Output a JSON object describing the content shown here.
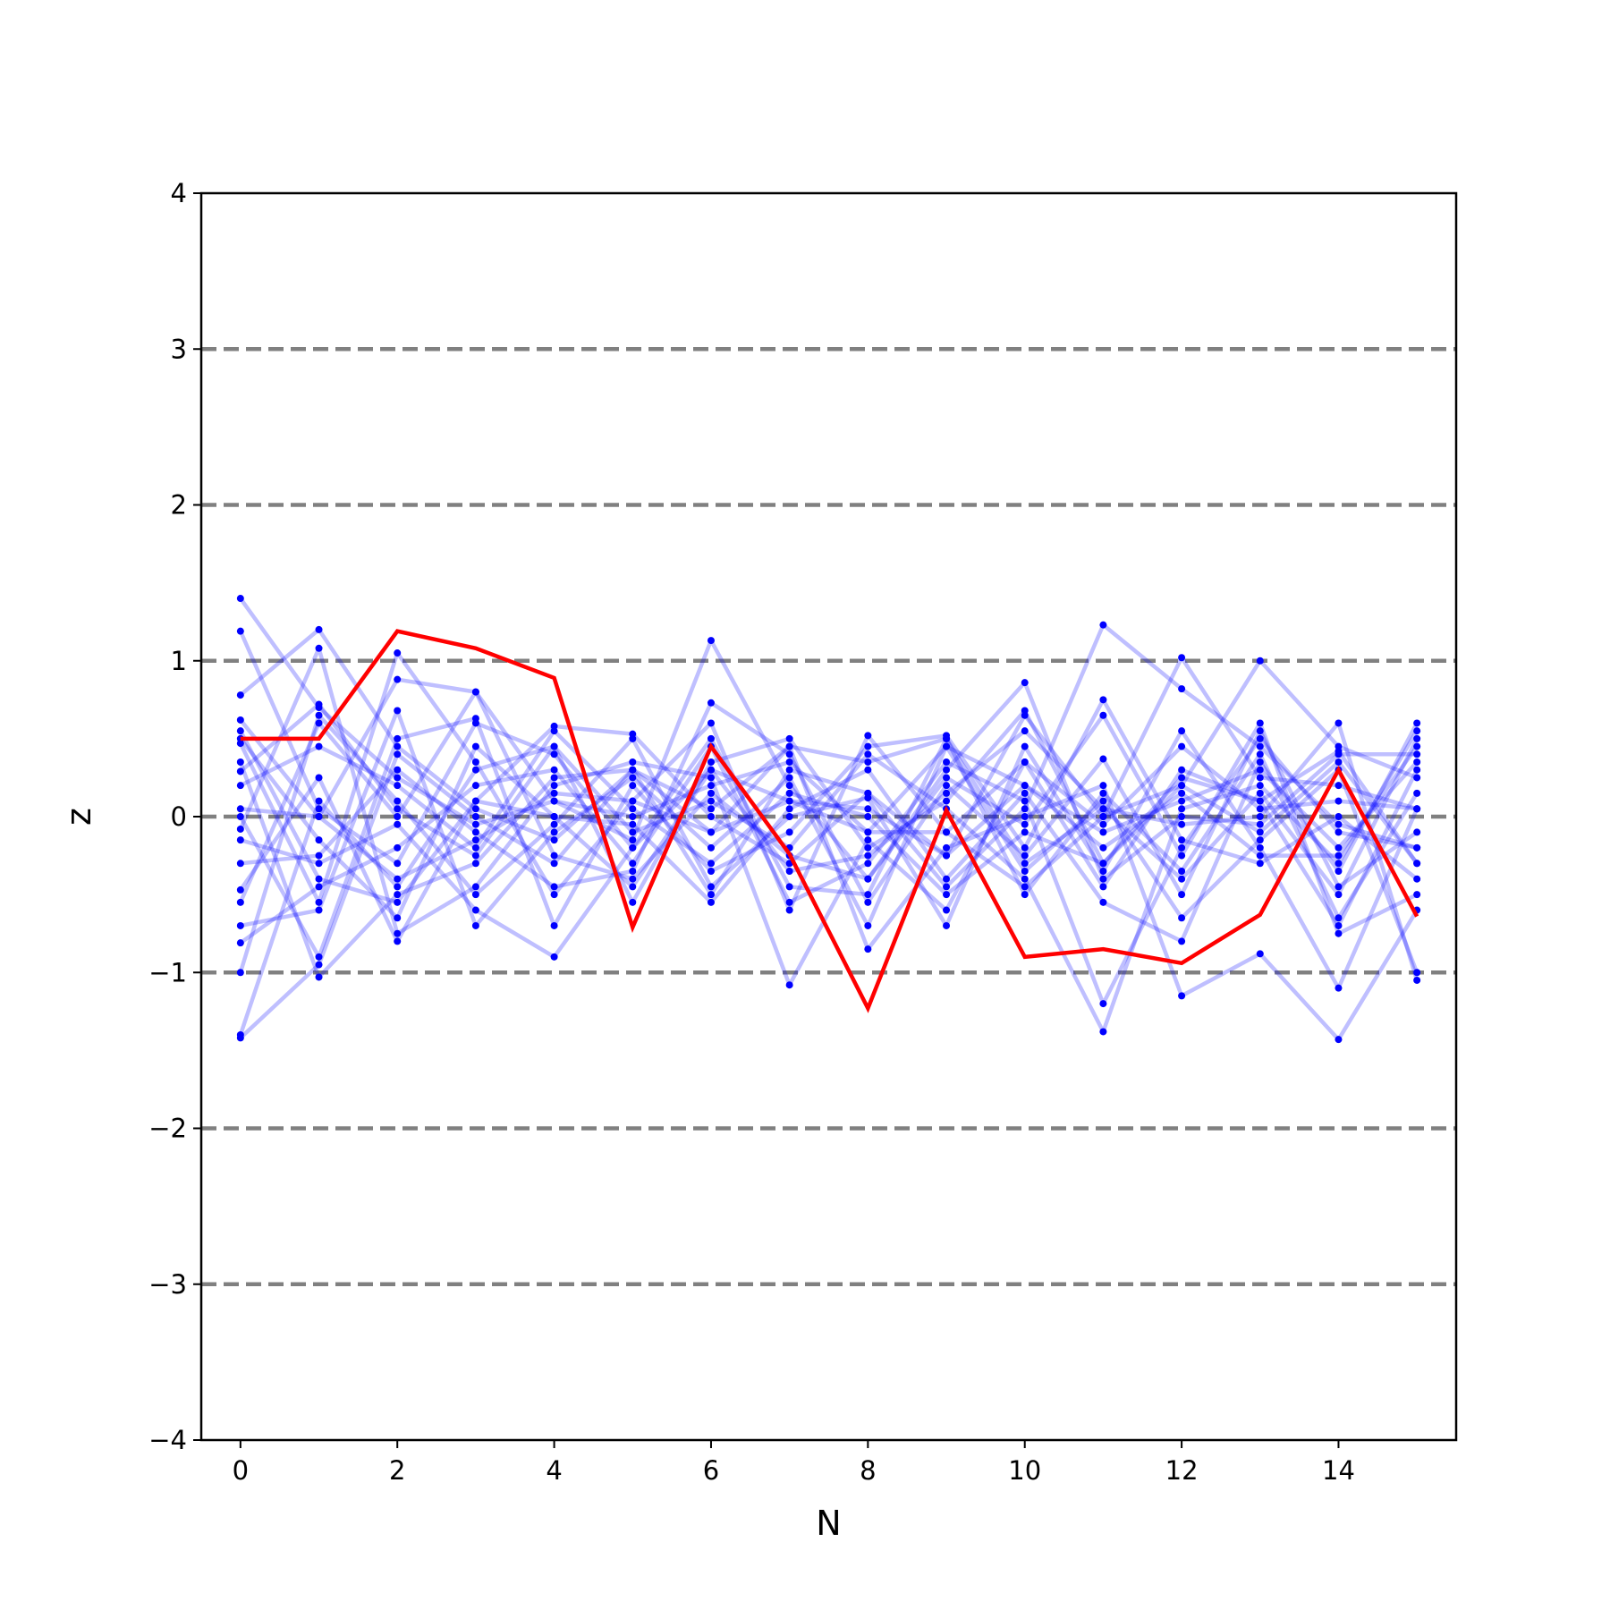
{
  "chart_data": {
    "type": "line",
    "xlabel": "N",
    "ylabel": "z",
    "xlim": [
      -0.5,
      15.5
    ],
    "ylim": [
      -4,
      4
    ],
    "x": [
      0,
      1,
      2,
      3,
      4,
      5,
      6,
      7,
      8,
      9,
      10,
      11,
      12,
      13,
      14,
      15
    ],
    "xticks": [
      0,
      2,
      4,
      6,
      8,
      10,
      12,
      14
    ],
    "xtick_labels": [
      "0",
      "2",
      "4",
      "6",
      "8",
      "10",
      "12",
      "14"
    ],
    "yticks": [
      -4,
      -3,
      -2,
      -1,
      0,
      1,
      2,
      3,
      4
    ],
    "ytick_labels": [
      "−4",
      "−3",
      "−2",
      "−1",
      "0",
      "1",
      "2",
      "3",
      "4"
    ],
    "reference_lines": [
      -3,
      -2,
      -1,
      0,
      1,
      2,
      3
    ],
    "grid": false,
    "legend": "none",
    "colors": {
      "background_series": "#0000ff",
      "highlight_series": "#ff0000",
      "reference_lines": "#808080"
    },
    "highlight_series": {
      "values": [
        0.5,
        0.5,
        1.19,
        1.08,
        0.89,
        -0.71,
        0.45,
        -0.24,
        -1.23,
        0.04,
        -0.9,
        -0.85,
        -0.94,
        -0.63,
        0.3,
        -0.64
      ]
    },
    "background_series": [
      {
        "values": [
          1.4,
          0.7,
          0.25,
          -0.05,
          0.1,
          0.0,
          0.2,
          0.35,
          -0.1,
          0.45,
          0.2,
          -0.1,
          0.1,
          0.3,
          -0.2,
          0.35
        ]
      },
      {
        "values": [
          1.19,
          0.05,
          -0.3,
          0.6,
          0.4,
          -0.2,
          0.3,
          0.1,
          0.05,
          -0.25,
          0.65,
          0.0,
          0.2,
          -0.1,
          0.35,
          -0.3
        ]
      },
      {
        "values": [
          0.78,
          1.2,
          0.45,
          0.05,
          -0.15,
          0.3,
          -0.1,
          0.45,
          0.35,
          0.5,
          -0.3,
          0.05,
          -0.4,
          0.15,
          -0.5,
          0.5
        ]
      },
      {
        "values": [
          0.62,
          0.0,
          0.88,
          0.8,
          0.1,
          -0.15,
          1.13,
          0.2,
          -0.4,
          0.3,
          0.86,
          -0.4,
          0.0,
          -0.05,
          0.4,
          0.4
        ]
      },
      {
        "values": [
          0.55,
          -0.4,
          -0.55,
          0.1,
          0.58,
          0.53,
          0.0,
          -0.3,
          0.15,
          -0.45,
          0.05,
          1.23,
          0.82,
          0.45,
          -0.05,
          -0.2
        ]
      },
      {
        "values": [
          0.47,
          -0.55,
          1.05,
          0.35,
          -0.5,
          0.1,
          0.6,
          -0.6,
          0.52,
          -0.1,
          -0.45,
          0.0,
          1.02,
          0.25,
          0.2,
          0.05
        ]
      },
      {
        "values": [
          0.29,
          0.72,
          0.05,
          -0.25,
          0.45,
          -0.55,
          0.35,
          0.5,
          -0.2,
          0.1,
          0.68,
          -0.3,
          0.2,
          1.0,
          0.45,
          0.25
        ]
      },
      {
        "values": [
          0.0,
          -0.9,
          0.5,
          0.63,
          -0.7,
          0.2,
          -0.35,
          -0.1,
          0.45,
          0.52,
          -0.2,
          0.75,
          -0.15,
          -0.3,
          0.0,
          -0.4
        ]
      },
      {
        "values": [
          -0.08,
          1.08,
          -0.75,
          -0.45,
          0.2,
          0.35,
          0.25,
          -1.08,
          -0.15,
          -0.6,
          0.35,
          -0.45,
          0.3,
          0.1,
          -0.7,
          0.3
        ]
      },
      {
        "values": [
          -0.3,
          -0.25,
          0.3,
          -0.1,
          -0.45,
          -0.35,
          0.73,
          0.4,
          -0.55,
          0.2,
          -0.25,
          0.37,
          -0.5,
          0.55,
          -0.45,
          -0.1
        ]
      },
      {
        "values": [
          -0.47,
          0.25,
          -0.8,
          0.1,
          0.0,
          -0.05,
          -0.55,
          0.05,
          0.3,
          -0.4,
          0.15,
          -0.55,
          -0.8,
          0.35,
          -0.35,
          0.6
        ]
      },
      {
        "values": [
          -0.7,
          -0.6,
          0.68,
          -0.7,
          -0.1,
          0.25,
          -0.2,
          0.25,
          -0.7,
          0.45,
          -0.35,
          0.1,
          -0.65,
          -0.15,
          0.3,
          -1.0
        ]
      },
      {
        "values": [
          -0.81,
          -0.45,
          -0.2,
          0.2,
          0.3,
          -0.3,
          0.45,
          -0.55,
          -0.3,
          0.35,
          0.1,
          -1.2,
          -0.2,
          0.5,
          -0.1,
          -0.2
        ]
      },
      {
        "values": [
          -1.0,
          0.65,
          0.1,
          -0.5,
          -0.05,
          0.5,
          -0.45,
          0.0,
          0.12,
          -0.7,
          0.45,
          -0.35,
          0.55,
          -0.2,
          -1.1,
          0.05
        ]
      },
      {
        "values": [
          -1.4,
          0.1,
          -0.45,
          0.3,
          0.45,
          -0.1,
          0.1,
          -0.2,
          0.4,
          0.05,
          -0.4,
          -1.38,
          0.05,
          0.2,
          -0.3,
          0.55
        ]
      },
      {
        "values": [
          -1.42,
          -0.95,
          0.4,
          0.0,
          -0.3,
          0.3,
          0.05,
          0.45,
          -0.85,
          -0.2,
          0.0,
          0.2,
          -1.15,
          -0.88,
          -1.43,
          -0.6
        ]
      },
      {
        "values": [
          0.5,
          -0.15,
          -0.65,
          0.45,
          0.0,
          -0.45,
          0.3,
          -0.35,
          -0.25,
          0.15,
          0.55,
          0.05,
          -0.05,
          0.0,
          0.6,
          -1.05
        ]
      },
      {
        "values": [
          0.2,
          0.45,
          0.2,
          -0.2,
          0.55,
          0.05,
          -0.3,
          0.15,
          0.0,
          -0.5,
          -0.1,
          -0.3,
          0.25,
          0.1,
          0.42,
          -0.3
        ]
      },
      {
        "values": [
          -0.15,
          -0.3,
          -0.05,
          -0.6,
          -0.9,
          -0.2,
          0.5,
          -0.45,
          -0.5,
          0.5,
          -0.5,
          0.15,
          -0.35,
          0.4,
          -0.65,
          0.15
        ]
      },
      {
        "values": [
          0.35,
          -1.03,
          -0.5,
          -0.3,
          0.25,
          0.3,
          -0.5,
          0.3,
          0.15,
          -0.25,
          0.2,
          -0.2,
          0.15,
          -0.25,
          -0.25,
          0.45
        ]
      },
      {
        "values": [
          -0.55,
          0.6,
          0.0,
          0.8,
          -0.25,
          -0.4,
          0.15,
          -0.25,
          -0.4,
          0.25,
          -0.05,
          0.65,
          -0.25,
          0.6,
          -0.75,
          -0.5
        ]
      },
      {
        "values": [
          0.05,
          0.0,
          -0.4,
          -0.15,
          0.15,
          0.1,
          -0.1,
          0.1,
          -0.1,
          -0.1,
          0.35,
          -0.05,
          0.45,
          0.05,
          0.1,
          0.05
        ]
      }
    ]
  }
}
